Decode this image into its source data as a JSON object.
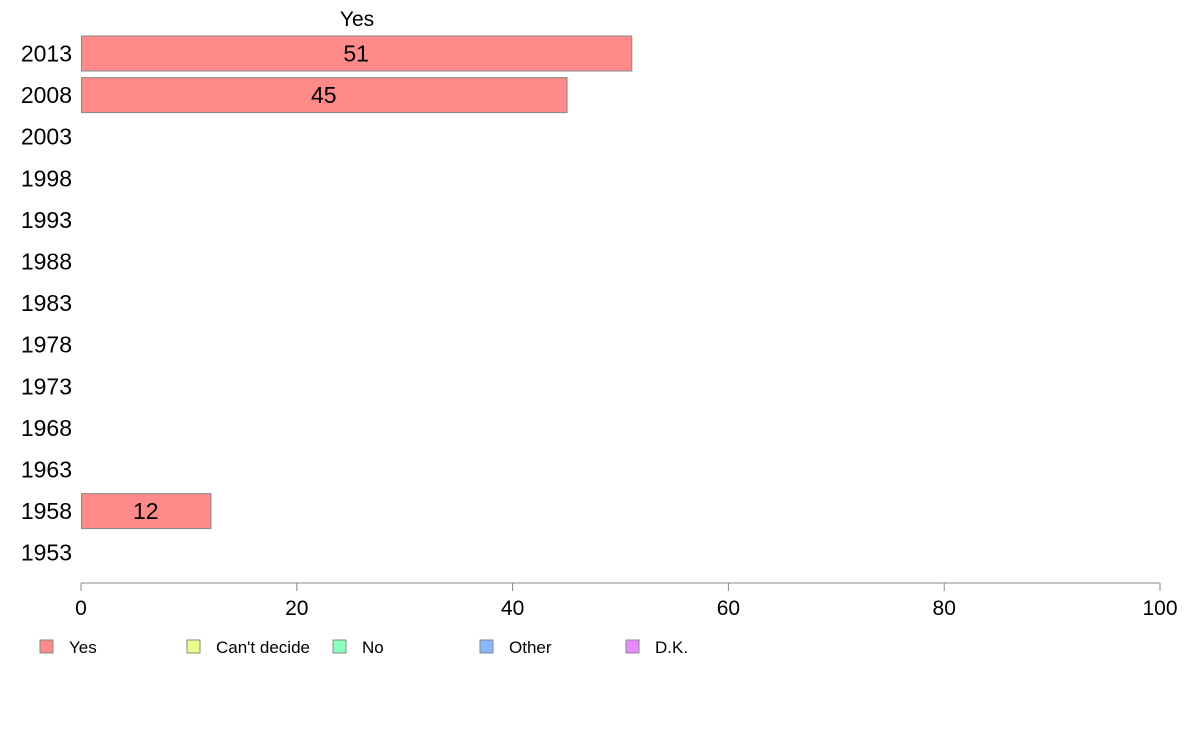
{
  "chart_data": {
    "type": "bar",
    "orientation": "horizontal",
    "categories": [
      "2013",
      "2008",
      "2003",
      "1998",
      "1993",
      "1988",
      "1983",
      "1978",
      "1973",
      "1968",
      "1963",
      "1958",
      "1953"
    ],
    "series": [
      {
        "name": "Yes",
        "values": [
          51,
          45,
          null,
          null,
          null,
          null,
          null,
          null,
          null,
          null,
          null,
          12,
          null
        ]
      }
    ],
    "title": "Yes",
    "xlim": [
      0,
      100
    ],
    "xticks": [
      "0",
      "20",
      "40",
      "60",
      "80",
      "100"
    ],
    "grid": false,
    "legend_position": "bottom-left",
    "legend": [
      {
        "label": "Yes",
        "color": "#ff8a8a"
      },
      {
        "label": "Can't decide",
        "color": "#e9ff8a"
      },
      {
        "label": "No",
        "color": "#8affc0"
      },
      {
        "label": "Other",
        "color": "#8ab8ff"
      },
      {
        "label": "D.K.",
        "color": "#e88aff"
      }
    ],
    "bar_color": "#ff8a8a"
  }
}
